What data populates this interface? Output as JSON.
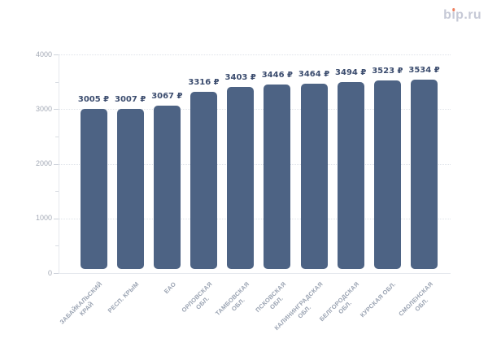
{
  "logo": {
    "prefix": "b",
    "dotless_i": "ı",
    "suffix": "p.ru",
    "dot_color": "#ee7f5f",
    "text_color": "#c6c9d6"
  },
  "chart_data": {
    "type": "bar",
    "title": "",
    "xlabel": "",
    "ylabel": "",
    "legend": "none",
    "grid": "horizontal-dotted",
    "currency": "₽",
    "categories": [
      "ЗАБАЙКАЛЬСКИЙ КРАЙ",
      "РЕСП. КРЫМ",
      "ЕАО",
      "ОРЛОВСКАЯ ОБЛ.",
      "ТАМБОВСКАЯ ОБЛ.",
      "ПСКОВСКАЯ ОБЛ.",
      "КАЛИНИНГРАДСКАЯ ОБЛ.",
      "БЕЛГОРОДСКАЯ ОБЛ.",
      "КУРСКАЯ ОБЛ.",
      "СМОЛЕНСКАЯ ОБЛ."
    ],
    "categories_lines": [
      [
        "ЗАБАЙКАЛЬСКИЙ",
        "КРАЙ"
      ],
      [
        "РЕСП. КРЫМ"
      ],
      [
        "ЕАО"
      ],
      [
        "ОРЛОВСКАЯ",
        "ОБЛ."
      ],
      [
        "ТАМБОВСКАЯ",
        "ОБЛ."
      ],
      [
        "ПСКОВСКАЯ",
        "ОБЛ."
      ],
      [
        "КАЛИНИНГРАДСКАЯ",
        "ОБЛ."
      ],
      [
        "БЕЛГОРОДСКАЯ",
        "ОБЛ."
      ],
      [
        "КУРСКАЯ ОБЛ."
      ],
      [
        "СМОЛЕНСКАЯ",
        "ОБЛ."
      ]
    ],
    "values": [
      3005,
      3007,
      3067,
      3316,
      3403,
      3446,
      3464,
      3494,
      3523,
      3534
    ],
    "value_labels": [
      "3005 ₽",
      "3007 ₽",
      "3067 ₽",
      "3316 ₽",
      "3403 ₽",
      "3446 ₽",
      "3464 ₽",
      "3494 ₽",
      "3523 ₽",
      "3534 ₽"
    ],
    "y_ticks": [
      0,
      1000,
      2000,
      3000,
      4000
    ],
    "y_tick_labels": [
      "0",
      "1000",
      "2000",
      "3000",
      "4000"
    ],
    "ylim": [
      0,
      4000
    ],
    "bar_color": "#4d6384",
    "value_label_color": "#3b4c6e",
    "axis_tick_label_color": "#a3a9b5",
    "category_label_color": "#9aa3b2"
  }
}
